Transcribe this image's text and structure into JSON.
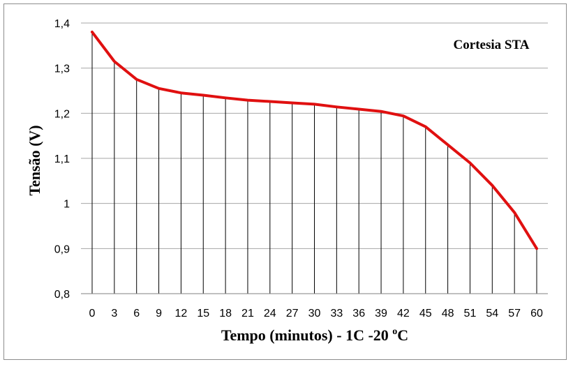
{
  "chart_data": {
    "type": "line",
    "title": "",
    "xlabel": "Tempo (minutos) - 1C -20 ",
    "xlabel_superscript": "o",
    "xlabel_suffix": "C",
    "ylabel": "Tensão (V)",
    "annotation": "Cortesia STA",
    "ylim": [
      0.8,
      1.4
    ],
    "yticks": [
      "0,8",
      "0,9",
      "1",
      "1,1",
      "1,2",
      "1,3",
      "1,4"
    ],
    "ytick_values": [
      0.8,
      0.9,
      1.0,
      1.1,
      1.2,
      1.3,
      1.4
    ],
    "x": [
      0,
      3,
      6,
      9,
      12,
      15,
      18,
      21,
      24,
      27,
      30,
      33,
      36,
      39,
      42,
      45,
      48,
      51,
      54,
      57,
      60
    ],
    "xtick_labels": [
      "0",
      "3",
      "6",
      "9",
      "12",
      "15",
      "18",
      "21",
      "24",
      "27",
      "30",
      "33",
      "36",
      "39",
      "42",
      "45",
      "48",
      "51",
      "54",
      "57",
      "60"
    ],
    "series": [
      {
        "name": "",
        "color": "#e01010",
        "values": [
          1.38,
          1.315,
          1.275,
          1.255,
          1.245,
          1.24,
          1.234,
          1.229,
          1.226,
          1.223,
          1.22,
          1.214,
          1.209,
          1.204,
          1.194,
          1.17,
          1.13,
          1.09,
          1.04,
          0.98,
          0.9
        ]
      }
    ],
    "grid": "horizontal",
    "drop_lines": true,
    "legend": "none"
  }
}
